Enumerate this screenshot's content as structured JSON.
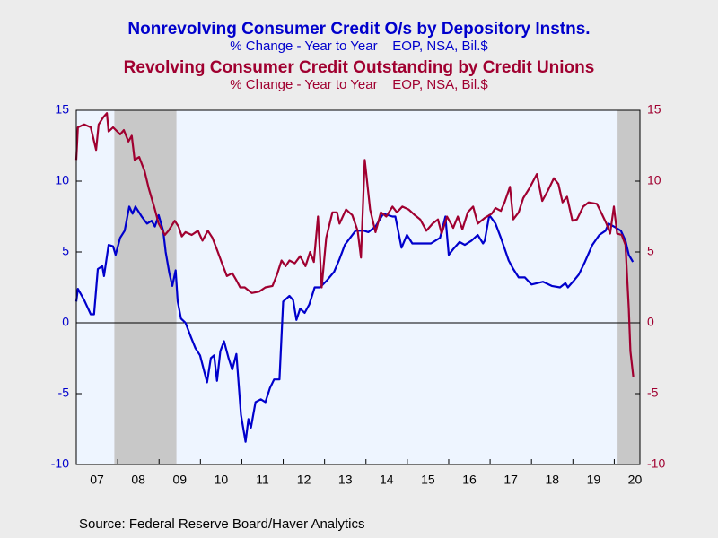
{
  "chart_data": {
    "type": "line",
    "source": "Source:  Federal Reserve Board/Haver Analytics",
    "xlim": [
      2007.0,
      2020.62
    ],
    "xticks": [
      {
        "value": 2007.5,
        "label": "07"
      },
      {
        "value": 2008.5,
        "label": "08"
      },
      {
        "value": 2009.5,
        "label": "09"
      },
      {
        "value": 2010.5,
        "label": "10"
      },
      {
        "value": 2011.5,
        "label": "11"
      },
      {
        "value": 2012.5,
        "label": "12"
      },
      {
        "value": 2013.5,
        "label": "13"
      },
      {
        "value": 2014.5,
        "label": "14"
      },
      {
        "value": 2015.5,
        "label": "15"
      },
      {
        "value": 2016.5,
        "label": "16"
      },
      {
        "value": 2017.5,
        "label": "17"
      },
      {
        "value": 2018.5,
        "label": "18"
      },
      {
        "value": 2019.5,
        "label": "19"
      },
      {
        "value": 2020.5,
        "label": "20"
      }
    ],
    "ylim": [
      -10,
      15
    ],
    "yticks": [
      -10,
      -5,
      0,
      5,
      10,
      15
    ],
    "y2lim": [
      -10,
      15
    ],
    "y2ticks": [
      -10,
      -5,
      0,
      5,
      10,
      15
    ],
    "shading": [
      [
        2007.92,
        2009.42
      ],
      [
        2020.08,
        2020.62
      ]
    ],
    "series": [
      {
        "name": "Nonrevolving Consumer Credit O/s by Depository Instns.",
        "subtitle": "% Change - Year to Year    EOP, NSA, Bil.$",
        "color": "#0000cc",
        "axis": "y",
        "x": [
          2007.0,
          2007.04,
          2007.19,
          2007.35,
          2007.43,
          2007.52,
          2007.63,
          2007.67,
          2007.78,
          2007.89,
          2007.95,
          2008.06,
          2008.17,
          2008.28,
          2008.36,
          2008.43,
          2008.58,
          2008.71,
          2008.82,
          2008.9,
          2008.99,
          2009.1,
          2009.16,
          2009.25,
          2009.32,
          2009.4,
          2009.45,
          2009.53,
          2009.64,
          2009.77,
          2009.88,
          2009.99,
          2010.16,
          2010.25,
          2010.33,
          2010.4,
          2010.48,
          2010.57,
          2010.68,
          2010.77,
          2010.87,
          2010.98,
          2011.09,
          2011.16,
          2011.22,
          2011.33,
          2011.46,
          2011.57,
          2011.68,
          2011.78,
          2011.91,
          2012.0,
          2012.15,
          2012.24,
          2012.32,
          2012.41,
          2012.52,
          2012.63,
          2012.76,
          2012.89,
          2013.06,
          2013.23,
          2013.36,
          2013.49,
          2013.75,
          2013.95,
          2014.06,
          2014.23,
          2014.42,
          2014.64,
          2014.71,
          2014.86,
          2014.99,
          2015.12,
          2015.35,
          2015.57,
          2015.79,
          2015.92,
          2016.0,
          2016.11,
          2016.26,
          2016.39,
          2016.55,
          2016.7,
          2016.83,
          2016.87,
          2016.98,
          2017.13,
          2017.26,
          2017.45,
          2017.56,
          2017.69,
          2017.84,
          2018.0,
          2018.28,
          2018.49,
          2018.69,
          2018.82,
          2018.88,
          2019.03,
          2019.14,
          2019.29,
          2019.47,
          2019.64,
          2019.79,
          2019.86,
          2019.99,
          2020.16,
          2020.27,
          2020.35,
          2020.45
        ],
        "values": [
          1.5,
          2.4,
          1.6,
          0.6,
          0.6,
          3.8,
          4.0,
          3.3,
          5.5,
          5.4,
          4.8,
          6.0,
          6.5,
          8.2,
          7.7,
          8.2,
          7.5,
          7.0,
          7.2,
          6.8,
          7.6,
          6.5,
          5.0,
          3.5,
          2.6,
          3.7,
          1.5,
          0.3,
          0.0,
          -1.0,
          -1.8,
          -2.3,
          -4.2,
          -2.5,
          -2.3,
          -4.1,
          -2.0,
          -1.3,
          -2.5,
          -3.3,
          -2.2,
          -6.5,
          -8.4,
          -6.8,
          -7.4,
          -5.6,
          -5.4,
          -5.6,
          -4.6,
          -4.0,
          -4.0,
          1.5,
          1.9,
          1.6,
          0.2,
          1.0,
          0.7,
          1.3,
          2.5,
          2.5,
          3.0,
          3.6,
          4.5,
          5.5,
          6.5,
          6.5,
          6.4,
          6.8,
          7.7,
          7.5,
          7.5,
          5.3,
          6.2,
          5.6,
          5.6,
          5.6,
          6.0,
          7.5,
          4.8,
          5.2,
          5.7,
          5.5,
          5.8,
          6.2,
          5.6,
          5.8,
          7.6,
          7.0,
          6.0,
          4.4,
          3.8,
          3.2,
          3.2,
          2.7,
          2.9,
          2.6,
          2.5,
          2.8,
          2.5,
          3.0,
          3.4,
          4.3,
          5.5,
          6.2,
          6.5,
          7.0,
          6.8,
          6.5,
          5.8,
          4.8,
          4.3
        ]
      },
      {
        "name": "Revolving Consumer Credit Outstanding by Credit Unions",
        "subtitle": "% Change - Year to Year    EOP, NSA, Bil.$",
        "color": "#a00030",
        "axis": "y2",
        "x": [
          2007.0,
          2007.04,
          2007.19,
          2007.35,
          2007.48,
          2007.54,
          2007.65,
          2007.74,
          2007.78,
          2007.89,
          2008.06,
          2008.15,
          2008.26,
          2008.34,
          2008.41,
          2008.52,
          2008.65,
          2008.75,
          2008.9,
          2008.99,
          2009.14,
          2009.23,
          2009.38,
          2009.47,
          2009.55,
          2009.64,
          2009.79,
          2009.94,
          2010.05,
          2010.18,
          2010.29,
          2010.42,
          2010.51,
          2010.64,
          2010.77,
          2010.87,
          2010.96,
          2011.07,
          2011.24,
          2011.42,
          2011.57,
          2011.74,
          2011.85,
          2011.96,
          2012.06,
          2012.15,
          2012.28,
          2012.41,
          2012.54,
          2012.65,
          2012.74,
          2012.84,
          2012.93,
          2013.04,
          2013.19,
          2013.3,
          2013.36,
          2013.52,
          2013.67,
          2013.8,
          2013.88,
          2013.97,
          2014.1,
          2014.23,
          2014.36,
          2014.49,
          2014.64,
          2014.75,
          2014.88,
          2015.03,
          2015.18,
          2015.31,
          2015.46,
          2015.61,
          2015.74,
          2015.83,
          2015.96,
          2016.11,
          2016.22,
          2016.33,
          2016.46,
          2016.59,
          2016.7,
          2016.87,
          2017.04,
          2017.13,
          2017.26,
          2017.35,
          2017.48,
          2017.56,
          2017.69,
          2017.8,
          2017.95,
          2018.13,
          2018.26,
          2018.39,
          2018.54,
          2018.65,
          2018.75,
          2018.86,
          2018.99,
          2019.1,
          2019.25,
          2019.38,
          2019.58,
          2019.68,
          2019.81,
          2019.9,
          2019.99,
          2020.07,
          2020.18,
          2020.27,
          2020.35,
          2020.39,
          2020.46
        ],
        "values": [
          11.5,
          13.8,
          14.0,
          13.8,
          12.2,
          14.0,
          14.5,
          14.8,
          13.5,
          13.8,
          13.3,
          13.6,
          12.8,
          13.2,
          11.5,
          11.7,
          10.7,
          9.5,
          8.0,
          7.0,
          6.2,
          6.5,
          7.2,
          6.8,
          6.1,
          6.4,
          6.2,
          6.5,
          5.8,
          6.5,
          6.0,
          5.0,
          4.3,
          3.3,
          3.5,
          3.0,
          2.5,
          2.5,
          2.1,
          2.2,
          2.5,
          2.6,
          3.4,
          4.4,
          4.0,
          4.4,
          4.2,
          4.7,
          4.0,
          5.0,
          4.3,
          7.5,
          2.5,
          6.0,
          7.8,
          7.8,
          7.0,
          8.0,
          7.6,
          6.5,
          4.6,
          11.5,
          8.0,
          6.4,
          7.8,
          7.5,
          8.2,
          7.8,
          8.2,
          8.0,
          7.6,
          7.3,
          6.5,
          7.0,
          7.3,
          6.3,
          7.5,
          6.7,
          7.5,
          6.6,
          7.8,
          8.2,
          7.0,
          7.4,
          7.7,
          8.1,
          7.9,
          8.5,
          9.6,
          7.3,
          7.8,
          8.8,
          9.5,
          10.5,
          8.6,
          9.3,
          10.2,
          9.8,
          8.5,
          8.9,
          7.2,
          7.3,
          8.2,
          8.5,
          8.4,
          7.8,
          7.0,
          6.3,
          8.2,
          6.3,
          6.2,
          5.5,
          1.0,
          -2.0,
          -3.8
        ]
      }
    ]
  }
}
